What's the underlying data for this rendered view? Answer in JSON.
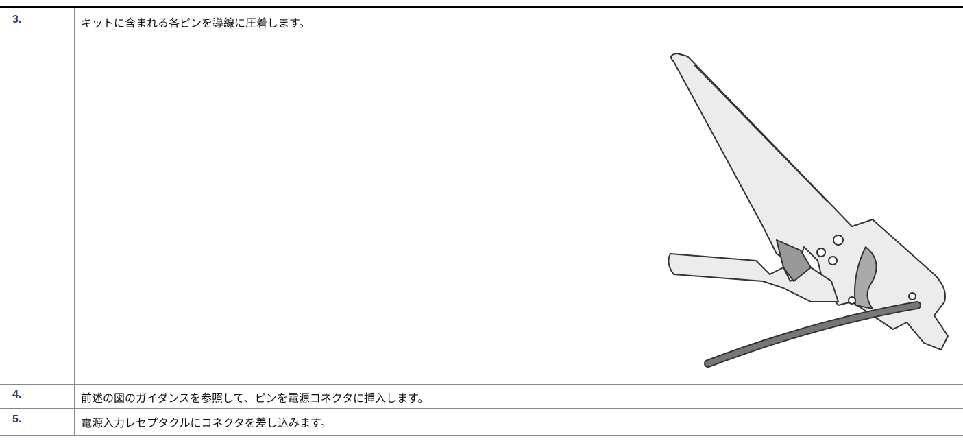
{
  "steps": [
    {
      "number": "3.",
      "text": "キットに含まれる各ピンを導線に圧着します。"
    },
    {
      "number": "4.",
      "text": "前述の図のガイダンスを参照して、ピンを電源コネクタに挿入します。"
    },
    {
      "number": "5.",
      "text": "電源入力レセプタクルにコネクタを差し込みます。"
    }
  ]
}
